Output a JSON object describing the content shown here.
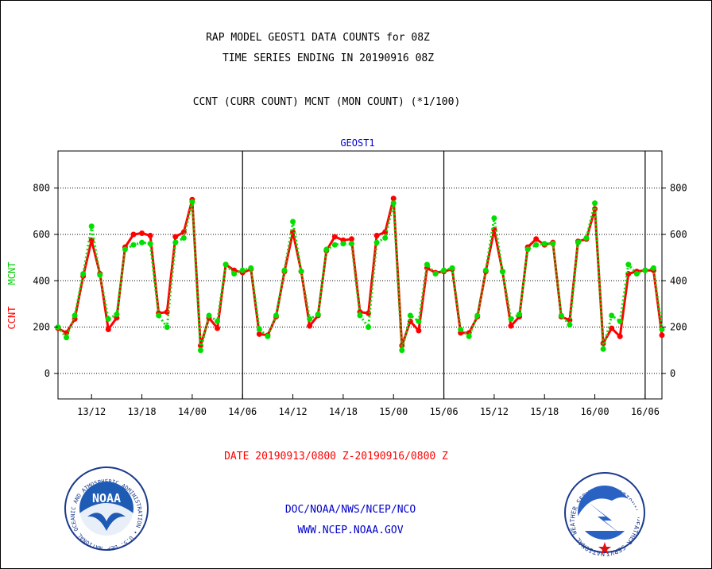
{
  "header": {
    "title_line1": "RAP MODEL GEOST1 DATA COUNTS for 08Z",
    "title_line2": "TIME SERIES ENDING IN 20190916 08Z",
    "subtitle": "CCNT (CURR COUNT) MCNT (MON COUNT) (*1/100)"
  },
  "footer": {
    "date_range": "DATE 20190913/0800 Z-20190916/0800 Z",
    "org": "DOC/NOAA/NWS/NCEP/NCO",
    "url": "WWW.NCEP.NOAA.GOV"
  },
  "logos": {
    "noaa_text": "NOAA",
    "noaa_ring": "NATIONAL OCEANIC AND ATMOSPHERIC ADMINISTRATION • U.S. DEPARTMENT OF COMMERCE •",
    "nws_ring": "NATIONAL WEATHER SERVICE • NATIONAL WEATHER SERVICE •"
  },
  "colors": {
    "ccnt": "#ff0000",
    "mcnt": "#00e000",
    "title": "#000000",
    "panel_label": "#0000cc",
    "footer_date": "#ff0000",
    "footer_links": "#0000cc"
  },
  "chart_data": {
    "type": "line",
    "panel_label": "GEOST1",
    "ylabel_ccnt": "CCNT",
    "ylabel_mcnt": "MCNT",
    "ylim": [
      -110,
      960
    ],
    "yticks": [
      0,
      200,
      400,
      600,
      800
    ],
    "grid": true,
    "x_unit": "hours since 20190913/0800Z",
    "xlim": [
      0,
      72
    ],
    "xticks": [
      {
        "x": 4,
        "label": "13/12"
      },
      {
        "x": 10,
        "label": "13/18"
      },
      {
        "x": 16,
        "label": "14/00"
      },
      {
        "x": 22,
        "label": "14/06"
      },
      {
        "x": 28,
        "label": "14/12"
      },
      {
        "x": 34,
        "label": "14/18"
      },
      {
        "x": 40,
        "label": "15/00"
      },
      {
        "x": 46,
        "label": "15/06"
      },
      {
        "x": 52,
        "label": "15/12"
      },
      {
        "x": 58,
        "label": "15/18"
      },
      {
        "x": 64,
        "label": "16/00"
      },
      {
        "x": 70,
        "label": "16/06"
      }
    ],
    "day_separators": [
      22,
      46,
      70
    ],
    "series": [
      {
        "name": "CCNT",
        "x": [
          0,
          1,
          2,
          3,
          4,
          5,
          6,
          7,
          8,
          9,
          10,
          11,
          12,
          13,
          14,
          15,
          16,
          17,
          18,
          19,
          20,
          21,
          22,
          23,
          24,
          25,
          26,
          27,
          28,
          29,
          30,
          31,
          32,
          33,
          34,
          35,
          36,
          37,
          38,
          39,
          40,
          41,
          42,
          43,
          44,
          45,
          46,
          47,
          48,
          49,
          50,
          51,
          52,
          53,
          54,
          55,
          56,
          57,
          58,
          59,
          60,
          61,
          62,
          63,
          64,
          65,
          66,
          67,
          68,
          69,
          70,
          71,
          72
        ],
        "values": [
          195,
          175,
          235,
          420,
          575,
          430,
          190,
          240,
          545,
          600,
          605,
          595,
          260,
          265,
          590,
          610,
          750,
          120,
          240,
          195,
          470,
          445,
          435,
          450,
          170,
          165,
          245,
          440,
          610,
          440,
          205,
          250,
          530,
          590,
          575,
          580,
          265,
          260,
          595,
          610,
          755,
          120,
          225,
          185,
          455,
          435,
          440,
          450,
          175,
          175,
          245,
          440,
          620,
          440,
          205,
          245,
          545,
          580,
          555,
          565,
          245,
          230,
          570,
          580,
          710,
          130,
          195,
          160,
          430,
          440,
          445,
          445,
          165
        ]
      },
      {
        "name": "MCNT",
        "x": [
          0,
          1,
          2,
          3,
          4,
          5,
          6,
          7,
          8,
          9,
          10,
          11,
          12,
          13,
          14,
          15,
          16,
          17,
          18,
          19,
          20,
          21,
          22,
          23,
          24,
          25,
          26,
          27,
          28,
          29,
          30,
          31,
          32,
          33,
          34,
          35,
          36,
          37,
          38,
          39,
          40,
          41,
          42,
          43,
          44,
          45,
          46,
          47,
          48,
          49,
          50,
          51,
          52,
          53,
          54,
          55,
          56,
          57,
          58,
          59,
          60,
          61,
          62,
          63,
          64,
          65,
          66,
          67,
          68,
          69,
          70,
          71,
          72
        ],
        "values": [
          200,
          155,
          250,
          430,
          635,
          425,
          235,
          255,
          535,
          555,
          565,
          560,
          250,
          200,
          565,
          585,
          740,
          100,
          250,
          225,
          470,
          430,
          445,
          455,
          190,
          160,
          250,
          445,
          655,
          440,
          235,
          255,
          535,
          555,
          560,
          560,
          250,
          200,
          565,
          585,
          735,
          100,
          250,
          225,
          470,
          430,
          445,
          455,
          190,
          160,
          250,
          445,
          670,
          440,
          235,
          255,
          535,
          555,
          560,
          560,
          250,
          210,
          565,
          585,
          735,
          105,
          250,
          225,
          470,
          430,
          445,
          455,
          190
        ]
      }
    ]
  }
}
